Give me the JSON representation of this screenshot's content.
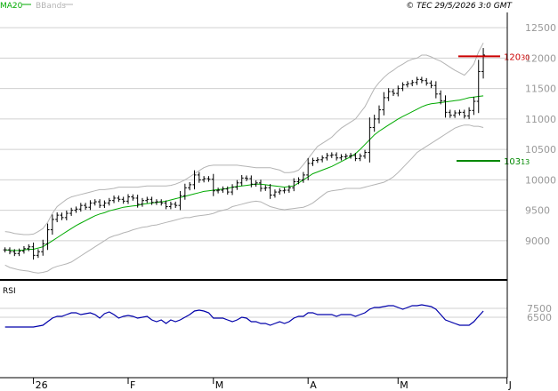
{
  "header": {
    "legend_ma": "MA20",
    "legend_bb": "BBands",
    "copyright": "© TEC 29/5/2026 3:0 GMT"
  },
  "price_panel": {
    "ylim": [
      8400,
      12750
    ],
    "yticks": [
      "12500",
      "12000",
      "11500",
      "11000",
      "10500",
      "10000",
      "9500",
      "9000"
    ],
    "ytick_values": [
      12500,
      12000,
      11500,
      11000,
      10500,
      10000,
      9500,
      9000
    ],
    "resistance": {
      "value": 12030,
      "label": "120",
      "label_small": "30"
    },
    "support": {
      "value": 10313,
      "label": "103",
      "label_small": "13"
    }
  },
  "rsi_panel": {
    "title": "RSI",
    "ylim": [
      0,
      100
    ],
    "yticks": [
      "7500",
      "6500"
    ],
    "ytick_values": [
      75,
      65
    ]
  },
  "x_axis": {
    "labels": [
      "26",
      "F",
      "M",
      "A",
      "M",
      "J"
    ],
    "label_bar_index": [
      6,
      26,
      44,
      64,
      83,
      106
    ]
  },
  "colors": {
    "ma": "#00aa00",
    "bbands": "#b4b4b4",
    "bars": "#000000",
    "rsi": "#0000aa",
    "resistance": "#cc0000",
    "support": "#008800",
    "grid": "#d0d0d0",
    "separator": "#000000"
  },
  "chart_data": {
    "type": "line",
    "title": "",
    "subtitle": "",
    "xlabel": "",
    "ylabel": "",
    "series_ohlc_close": [
      8850,
      8820,
      8790,
      8830,
      8870,
      8900,
      8760,
      8820,
      8950,
      9180,
      9350,
      9420,
      9380,
      9450,
      9500,
      9520,
      9580,
      9550,
      9620,
      9640,
      9580,
      9620,
      9660,
      9700,
      9680,
      9650,
      9720,
      9700,
      9600,
      9660,
      9680,
      9630,
      9640,
      9620,
      9560,
      9600,
      9580,
      9740,
      9870,
      9920,
      10080,
      10000,
      10020,
      10010,
      9820,
      9830,
      9850,
      9800,
      9880,
      9950,
      10030,
      10020,
      9930,
      9950,
      9860,
      9870,
      9750,
      9800,
      9820,
      9830,
      9870,
      9970,
      10000,
      10080,
      10270,
      10320,
      10330,
      10360,
      10400,
      10410,
      10360,
      10380,
      10390,
      10400,
      10350,
      10390,
      10450,
      10860,
      11000,
      11150,
      11350,
      11450,
      11420,
      11500,
      11560,
      11580,
      11600,
      11650,
      11630,
      11590,
      11550,
      11410,
      11300,
      11110,
      11060,
      11100,
      11110,
      11050,
      11140,
      11290,
      11780,
      12050
    ],
    "series_ma20": [
      8850,
      8845,
      8840,
      8840,
      8850,
      8860,
      8860,
      8880,
      8900,
      8950,
      9000,
      9050,
      9100,
      9150,
      9200,
      9250,
      9290,
      9330,
      9370,
      9410,
      9440,
      9460,
      9490,
      9510,
      9530,
      9550,
      9560,
      9570,
      9580,
      9600,
      9610,
      9620,
      9630,
      9640,
      9650,
      9670,
      9690,
      9710,
      9730,
      9750,
      9770,
      9790,
      9810,
      9820,
      9830,
      9840,
      9850,
      9860,
      9880,
      9890,
      9900,
      9910,
      9920,
      9930,
      9930,
      9920,
      9910,
      9900,
      9890,
      9880,
      9890,
      9900,
      9950,
      10000,
      10050,
      10100,
      10130,
      10160,
      10190,
      10220,
      10260,
      10300,
      10340,
      10380,
      10430,
      10500,
      10580,
      10660,
      10740,
      10800,
      10850,
      10900,
      10950,
      11000,
      11040,
      11080,
      11120,
      11160,
      11200,
      11230,
      11250,
      11260,
      11270,
      11280,
      11290,
      11300,
      11310,
      11330,
      11350,
      11360,
      11370,
      11380
    ],
    "series_bb_upper": [
      9150,
      9140,
      9120,
      9110,
      9100,
      9100,
      9110,
      9150,
      9200,
      9300,
      9450,
      9560,
      9620,
      9680,
      9720,
      9740,
      9760,
      9780,
      9800,
      9820,
      9840,
      9840,
      9850,
      9860,
      9880,
      9880,
      9880,
      9880,
      9880,
      9890,
      9900,
      9900,
      9900,
      9900,
      9900,
      9910,
      9930,
      9960,
      10000,
      10050,
      10100,
      10150,
      10200,
      10230,
      10240,
      10240,
      10240,
      10240,
      10240,
      10240,
      10230,
      10220,
      10210,
      10200,
      10200,
      10200,
      10200,
      10180,
      10160,
      10120,
      10120,
      10130,
      10160,
      10250,
      10350,
      10450,
      10550,
      10600,
      10650,
      10700,
      10780,
      10850,
      10900,
      10950,
      11000,
      11100,
      11200,
      11350,
      11500,
      11600,
      11680,
      11750,
      11800,
      11860,
      11900,
      11950,
      11980,
      12000,
      12050,
      12050,
      12020,
      11980,
      11950,
      11900,
      11850,
      11800,
      11760,
      11720,
      11800,
      11900,
      12100,
      12250
    ],
    "series_bb_lower": [
      8600,
      8560,
      8540,
      8520,
      8510,
      8500,
      8480,
      8470,
      8480,
      8500,
      8550,
      8580,
      8600,
      8620,
      8650,
      8700,
      8750,
      8800,
      8850,
      8900,
      8950,
      9000,
      9050,
      9080,
      9100,
      9130,
      9150,
      9180,
      9200,
      9220,
      9230,
      9250,
      9260,
      9280,
      9300,
      9320,
      9340,
      9360,
      9380,
      9380,
      9400,
      9410,
      9420,
      9430,
      9450,
      9480,
      9500,
      9520,
      9560,
      9580,
      9600,
      9620,
      9640,
      9650,
      9640,
      9600,
      9560,
      9540,
      9520,
      9510,
      9520,
      9530,
      9540,
      9550,
      9580,
      9620,
      9680,
      9740,
      9800,
      9820,
      9830,
      9840,
      9860,
      9860,
      9860,
      9860,
      9880,
      9900,
      9920,
      9940,
      9960,
      10000,
      10050,
      10120,
      10200,
      10280,
      10360,
      10450,
      10500,
      10550,
      10600,
      10650,
      10700,
      10750,
      10800,
      10850,
      10880,
      10900,
      10900,
      10880,
      10880,
      10860
    ],
    "series_rsi": [
      54,
      54,
      54,
      54,
      54,
      54,
      54,
      55,
      56,
      60,
      64,
      66,
      66,
      68,
      70,
      70,
      68,
      69,
      70,
      68,
      64,
      69,
      71,
      68,
      64,
      66,
      67,
      66,
      64,
      65,
      66,
      62,
      60,
      62,
      58,
      62,
      60,
      62,
      65,
      68,
      72,
      73,
      72,
      70,
      64,
      64,
      64,
      62,
      60,
      62,
      65,
      64,
      60,
      60,
      58,
      58,
      56,
      58,
      60,
      58,
      60,
      64,
      66,
      66,
      70,
      70,
      68,
      68,
      68,
      68,
      66,
      68,
      68,
      68,
      66,
      68,
      70,
      74,
      76,
      76,
      77,
      78,
      78,
      76,
      74,
      76,
      78,
      78,
      79,
      78,
      77,
      74,
      68,
      62,
      60,
      58,
      56,
      56,
      56,
      60,
      66,
      72
    ],
    "rsi_ylim": [
      0,
      100
    ]
  }
}
